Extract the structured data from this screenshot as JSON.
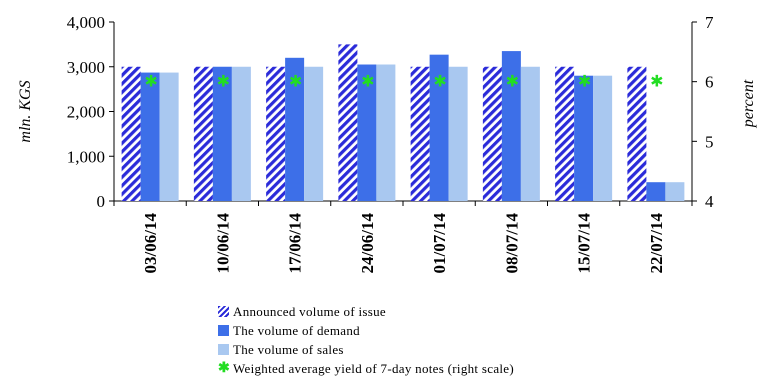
{
  "chart_data": {
    "type": "bar",
    "categories": [
      "03/06/14",
      "10/06/14",
      "17/06/14",
      "24/06/14",
      "01/07/14",
      "08/07/14",
      "15/07/14",
      "22/07/14"
    ],
    "series": [
      {
        "name": "Announced volume of issue",
        "kind": "bar-hatched",
        "color": "#2b2bd9",
        "values": [
          3000,
          3000,
          3000,
          3500,
          3000,
          3000,
          3000,
          3000
        ]
      },
      {
        "name": "The volume of demand",
        "kind": "bar",
        "color": "#3d6fe8",
        "values": [
          2870,
          3000,
          3200,
          3050,
          3270,
          3350,
          2800,
          420
        ]
      },
      {
        "name": "The volume of sales",
        "kind": "bar",
        "color": "#a9c8f0",
        "values": [
          2870,
          3000,
          3000,
          3050,
          3000,
          3000,
          2800,
          420
        ]
      },
      {
        "name": "Weighted average yield of 7-day notes (right scale)",
        "kind": "marker",
        "axis": "right",
        "color": "#22dd22",
        "values": [
          6.0,
          6.0,
          6.0,
          6.0,
          6.0,
          6.0,
          6.0,
          6.0
        ]
      }
    ],
    "ylabel": "mln. KGS",
    "y2label": "percent",
    "ylim": [
      0,
      4000
    ],
    "y2lim": [
      4,
      7
    ],
    "yticks": [
      "0",
      "1,000",
      "2,000",
      "3,000",
      "4,000"
    ],
    "y2ticks": [
      "4",
      "5",
      "6",
      "7"
    ],
    "legend_position": "bottom",
    "grid": false
  }
}
